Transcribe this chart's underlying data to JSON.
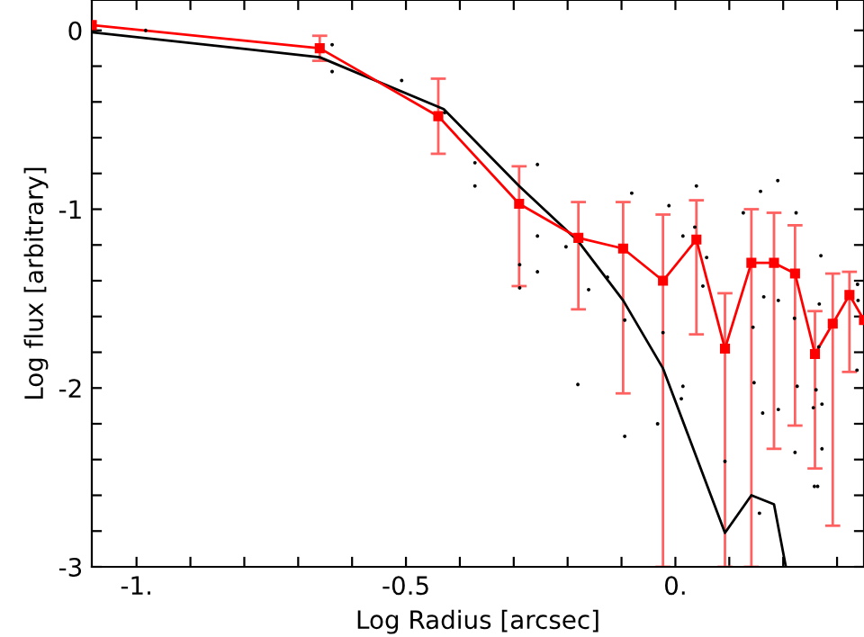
{
  "chart_data": {
    "type": "line",
    "xlabel": "Log Radius [arcsec]",
    "ylabel": "Log flux [arbitrary]",
    "xlim": [
      -1.083,
      0.35
    ],
    "ylim": [
      -3.0,
      0.17
    ],
    "xticks": [
      {
        "value": -1,
        "label": "-1."
      },
      {
        "value": -0.9,
        "label": null
      },
      {
        "value": -0.8,
        "label": null
      },
      {
        "value": -0.7,
        "label": null
      },
      {
        "value": -0.6,
        "label": null
      },
      {
        "value": -0.5,
        "label": "-0.5"
      },
      {
        "value": -0.4,
        "label": null
      },
      {
        "value": -0.3,
        "label": null
      },
      {
        "value": -0.2,
        "label": null
      },
      {
        "value": -0.1,
        "label": null
      },
      {
        "value": 0,
        "label": "0."
      },
      {
        "value": 0.1,
        "label": null
      },
      {
        "value": 0.2,
        "label": null
      },
      {
        "value": 0.3,
        "label": null
      }
    ],
    "yticks": [
      {
        "value": 0,
        "label": "0"
      },
      {
        "value": -0.2,
        "label": null
      },
      {
        "value": -0.4,
        "label": null
      },
      {
        "value": -0.6,
        "label": null
      },
      {
        "value": -0.8,
        "label": null
      },
      {
        "value": -1,
        "label": "-1"
      },
      {
        "value": -1.2,
        "label": null
      },
      {
        "value": -1.4,
        "label": null
      },
      {
        "value": -1.6,
        "label": null
      },
      {
        "value": -1.8,
        "label": null
      },
      {
        "value": -2,
        "label": "-2"
      },
      {
        "value": -2.2,
        "label": null
      },
      {
        "value": -2.4,
        "label": null
      },
      {
        "value": -2.6,
        "label": null
      },
      {
        "value": -2.8,
        "label": null
      },
      {
        "value": -3,
        "label": "-3"
      }
    ],
    "grid": false,
    "series": [
      {
        "type": "scatter",
        "color": "#000000",
        "marker": "circle",
        "x": [
          -0.983,
          -0.637,
          -0.637,
          -0.508,
          -0.428,
          -0.372,
          -0.372,
          -0.256,
          -0.256,
          -0.256,
          -0.289,
          -0.289,
          -0.203,
          -0.181,
          -0.161,
          -0.126,
          -0.094,
          -0.094,
          -0.081,
          -0.033,
          -0.012,
          -0.023,
          0.014,
          0.011,
          0.014,
          0.039,
          0.036,
          0.051,
          0.058,
          0.092,
          0.126,
          0.144,
          0.146,
          0.156,
          0.158,
          0.162,
          0.164,
          0.19,
          0.191,
          0.191,
          0.221,
          0.222,
          0.226,
          0.224,
          0.256,
          0.258,
          0.261,
          0.264,
          0.266,
          0.267,
          0.27,
          0.272,
          0.272,
          0.337,
          0.338,
          0.339
        ],
        "values": [
          0.0,
          -0.08,
          -0.23,
          -0.28,
          -0.46,
          -0.74,
          -0.87,
          -0.75,
          -1.15,
          -1.35,
          -1.31,
          -1.44,
          -1.21,
          -1.98,
          -1.45,
          -1.38,
          -2.27,
          -1.62,
          -0.91,
          -2.2,
          -0.98,
          -1.69,
          -1.99,
          -2.06,
          -1.15,
          -0.87,
          -1.1,
          -1.43,
          -1.27,
          -2.41,
          -1.02,
          -1.66,
          -1.97,
          -2.7,
          -0.9,
          -2.14,
          -1.49,
          -0.84,
          -1.51,
          -2.12,
          -1.61,
          -2.36,
          -1.99,
          -1.02,
          -2.11,
          -2.55,
          -2.01,
          -2.55,
          -1.77,
          -1.53,
          -1.26,
          -2.34,
          -2.09,
          -1.9,
          -1.42,
          -1.51
        ]
      },
      {
        "color": "#000000",
        "marker": "none",
        "line_style": "solid",
        "x": [
          -1.083,
          -0.66,
          -0.43,
          -0.29,
          -0.18,
          -0.097,
          -0.023,
          0.092,
          0.141,
          0.183,
          0.205
        ],
        "values": [
          -0.01,
          -0.15,
          -0.44,
          -0.87,
          -1.18,
          -1.51,
          -1.89,
          -2.81,
          -2.6,
          -2.65,
          -3.0
        ]
      },
      {
        "color": "#ff0000",
        "marker": "square",
        "line_style": "solid",
        "x": [
          -1.083,
          -0.66,
          -0.44,
          -0.29,
          -0.18,
          -0.097,
          -0.023,
          0.039,
          0.092,
          0.141,
          0.183,
          0.222,
          0.259,
          0.292,
          0.323,
          0.35
        ],
        "values": [
          0.03,
          -0.1,
          -0.48,
          -0.97,
          -1.16,
          -1.22,
          -1.4,
          -1.17,
          -1.78,
          -1.3,
          -1.3,
          -1.36,
          -1.81,
          -1.64,
          -1.48,
          -1.62
        ],
        "errors": [
          null,
          [
            -0.17,
            -0.03
          ],
          [
            -0.69,
            -0.27
          ],
          [
            -1.43,
            -0.76
          ],
          [
            -1.56,
            -0.96
          ],
          [
            -2.03,
            -0.96
          ],
          [
            -3.0,
            -1.03
          ],
          [
            -1.7,
            -0.95
          ],
          [
            -3.0,
            -1.47
          ],
          [
            -3.0,
            -1.0
          ],
          [
            -2.34,
            -1.02
          ],
          [
            -2.21,
            -1.09
          ],
          [
            -2.45,
            -1.57
          ],
          [
            -2.77,
            -1.36
          ],
          [
            -1.91,
            -1.35
          ],
          null
        ]
      }
    ]
  }
}
